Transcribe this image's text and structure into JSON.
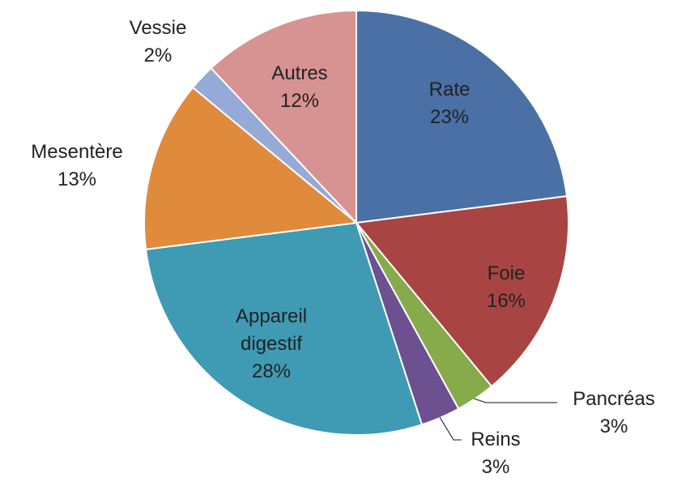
{
  "chart_data": {
    "type": "pie",
    "categories": [
      "Rate",
      "Foie",
      "Pancréas",
      "Reins",
      "Appareil digestif",
      "Mesentère",
      "Vessie",
      "Autres"
    ],
    "values": [
      23,
      16,
      3,
      3,
      28,
      13,
      2,
      12
    ],
    "value_labels": [
      "23%",
      "16%",
      "3%",
      "3%",
      "28%",
      "13%",
      "2%",
      "12%"
    ],
    "colors": [
      "#4a70a6",
      "#a84543",
      "#87aa4b",
      "#6c5090",
      "#3f9bb4",
      "#e08a3c",
      "#95aad6",
      "#d69391"
    ]
  }
}
